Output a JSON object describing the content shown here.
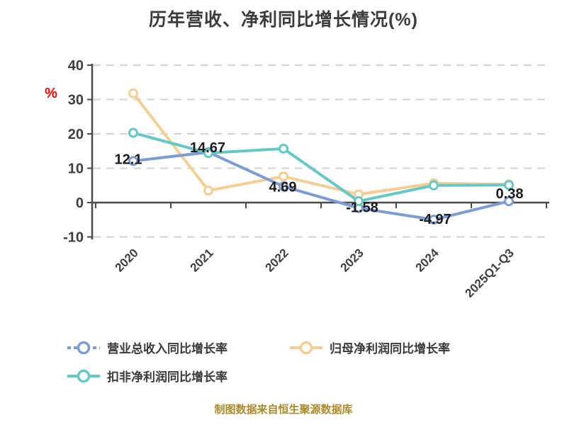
{
  "title": "历年营收、净利同比增长情况(%)",
  "caption": {
    "text": "制图数据来自恒生聚源数据库",
    "color": "#ab8a2b"
  },
  "y_axis": {
    "unit": "%",
    "unit_color": "#e60000",
    "ticks": [
      40,
      30,
      20,
      10,
      0,
      -10
    ],
    "min": -10,
    "max": 40
  },
  "x_axis": {
    "categories": [
      "2020",
      "2021",
      "2022",
      "2023",
      "2024",
      "2025Q1-Q3"
    ]
  },
  "legend": {
    "items": [
      {
        "label": "营业总收入同比增长率",
        "color": "#7d9cd4",
        "dashed_icon": true
      },
      {
        "label": "归母净利润同比增长率",
        "color": "#f5ce93",
        "dashed_icon": false
      },
      {
        "label": "扣非净利润同比增长率",
        "color": "#65c8c6",
        "dashed_icon": false
      }
    ]
  },
  "chart_data": {
    "type": "line",
    "title": "历年营收、净利同比增长情况(%)",
    "xlabel": "",
    "ylabel": "%",
    "ylim": [
      -10,
      40
    ],
    "grid": "horizontal dashed",
    "legend_position": "bottom",
    "categories": [
      "2020",
      "2021",
      "2022",
      "2023",
      "2024",
      "2025Q1-Q3"
    ],
    "series": [
      {
        "name": "营业总收入同比增长率",
        "color": "#7d9cd4",
        "values": [
          12.1,
          14.67,
          4.69,
          -1.58,
          -4.97,
          0.38
        ],
        "point_labels": [
          {
            "text": "12.1",
            "dx": -7,
            "dy": 4
          },
          {
            "text": "14.67",
            "dx": -1,
            "dy": 0
          },
          {
            "text": "4.69",
            "dx": -1,
            "dy": 7
          },
          {
            "text": "-1.58",
            "dx": 5,
            "dy": 6
          },
          {
            "text": "-4.97",
            "dx": 2,
            "dy": 6
          },
          {
            "text": "0.38",
            "dx": 1,
            "dy": -4
          }
        ]
      },
      {
        "name": "归母净利润同比增长率",
        "color": "#f5ce93",
        "values": [
          31.8,
          3.5,
          7.6,
          2.4,
          5.6,
          5.3
        ],
        "point_labels": []
      },
      {
        "name": "扣非净利润同比增长率",
        "color": "#65c8c6",
        "values": [
          20.3,
          14.4,
          15.7,
          0.4,
          5.0,
          5.1
        ],
        "point_labels": []
      }
    ]
  }
}
